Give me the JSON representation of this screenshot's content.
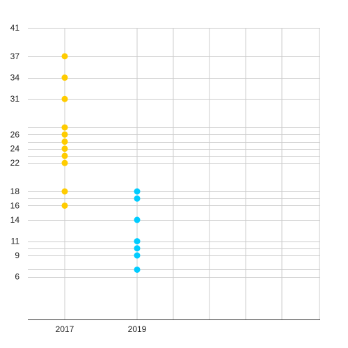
{
  "chart_data": {
    "type": "scatter",
    "title": "",
    "xlabel": "",
    "ylabel": "",
    "x_ticks": [
      "2017",
      "2019"
    ],
    "y_ticks": [
      6,
      9,
      11,
      14,
      16,
      18,
      22,
      24,
      26,
      31,
      34,
      37,
      41
    ],
    "y_grid_values": [
      6,
      7,
      9,
      10,
      11,
      14,
      16,
      17,
      18,
      22,
      23,
      24,
      25,
      26,
      27,
      31,
      34,
      37,
      41
    ],
    "ylim": [
      0,
      41
    ],
    "grid": true,
    "legend": "none",
    "series": [
      {
        "x": "2017",
        "color": "#ffcc00",
        "values": [
          37,
          34,
          31,
          27,
          26,
          25,
          24,
          23,
          22,
          18,
          16
        ]
      },
      {
        "x": "2019",
        "color": "#00ccff",
        "values": [
          18,
          17,
          14,
          11,
          10,
          9,
          7
        ]
      }
    ]
  }
}
